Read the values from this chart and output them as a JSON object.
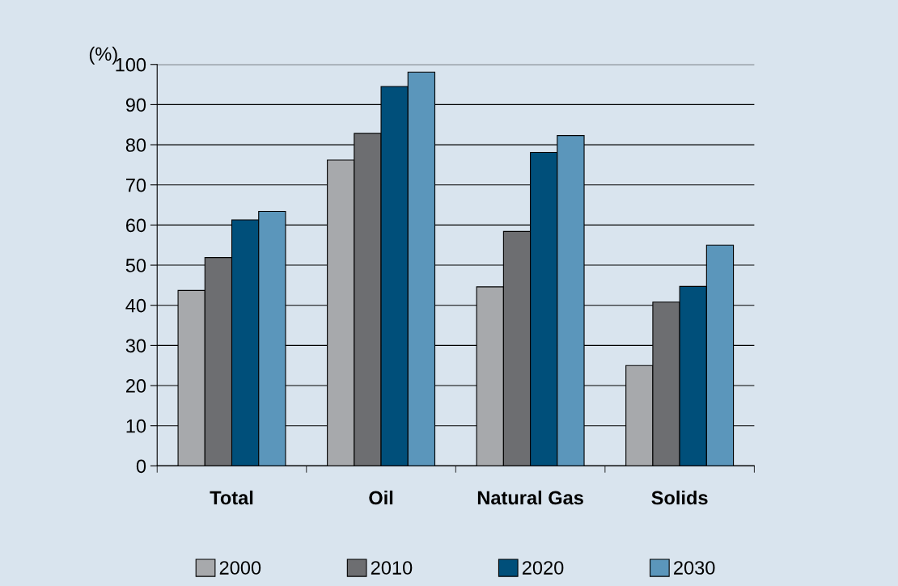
{
  "chart_data": {
    "type": "bar",
    "ylabel": "(%)",
    "categories": [
      "Total",
      "Oil",
      "Natural Gas",
      "Solids"
    ],
    "series": [
      {
        "name": "2000",
        "color": "#a7a9ac",
        "values": [
          43.7,
          76.2,
          44.6,
          25
        ]
      },
      {
        "name": "2010",
        "color": "#6d6e71",
        "values": [
          51.9,
          82.8,
          58.4,
          40.8
        ]
      },
      {
        "name": "2020",
        "color": "#004f7a",
        "values": [
          61.3,
          94.5,
          78.1,
          44.7
        ]
      },
      {
        "name": "2030",
        "color": "#5b96bb",
        "values": [
          63.4,
          98.1,
          82.3,
          55
        ]
      }
    ],
    "ylim": [
      0,
      100
    ],
    "yticks": [
      0,
      10,
      20,
      30,
      40,
      50,
      60,
      70,
      80,
      90,
      100
    ],
    "grid": "y",
    "legend": "bottom"
  }
}
